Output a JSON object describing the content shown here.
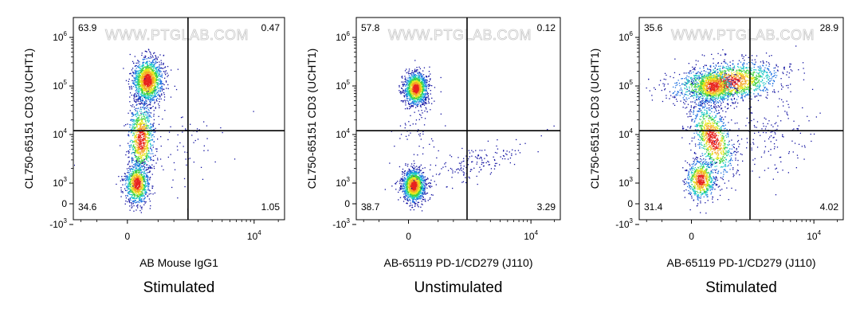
{
  "watermark": "WWW.PTGLAB.COM",
  "chart_data": [
    {
      "type": "scatter",
      "xlabel": "AB Mouse IgG1",
      "ylabel": "CL750-65151 CD3 (UCHT1)",
      "condition": "Stimulated",
      "x_ticks": [
        "0",
        "10^4"
      ],
      "y_ticks": [
        "10^6",
        "10^5",
        "10^4",
        "10^3",
        "0",
        "-10^3"
      ],
      "quadrants": {
        "top_left": "63.9",
        "top_right": "0.47",
        "bottom_left": "34.6",
        "bottom_right": "1.05"
      },
      "gate": {
        "x": 1500,
        "y": 12000
      }
    },
    {
      "type": "scatter",
      "xlabel": "AB-65119 PD-1/CD279 (J110)",
      "ylabel": "CL750-65151 CD3 (UCHT1)",
      "condition": "Unstimulated",
      "x_ticks": [
        "0",
        "10^4"
      ],
      "y_ticks": [
        "10^6",
        "10^5",
        "10^4",
        "10^3",
        "0",
        "-10^3"
      ],
      "quadrants": {
        "top_left": "57.8",
        "top_right": "0.12",
        "bottom_left": "38.7",
        "bottom_right": "3.29"
      },
      "gate": {
        "x": 1500,
        "y": 12000
      }
    },
    {
      "type": "scatter",
      "xlabel": "AB-65119 PD-1/CD279 (J110)",
      "ylabel": "CL750-65151 CD3 (UCHT1)",
      "condition": "Stimulated",
      "x_ticks": [
        "0",
        "10^4"
      ],
      "y_ticks": [
        "10^6",
        "10^5",
        "10^4",
        "10^3",
        "0",
        "-10^3"
      ],
      "quadrants": {
        "top_left": "35.6",
        "top_right": "28.9",
        "bottom_left": "31.4",
        "bottom_right": "4.02"
      },
      "gate": {
        "x": 1500,
        "y": 12000
      }
    }
  ]
}
